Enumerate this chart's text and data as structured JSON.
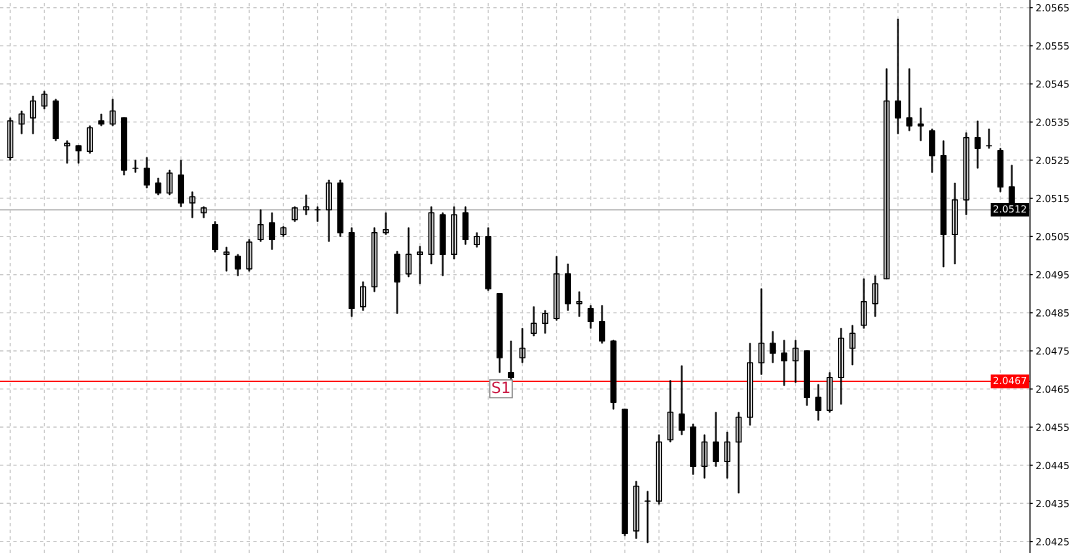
{
  "chart_data": {
    "type": "candlestick",
    "categories": [
      null,
      null,
      null,
      null,
      null,
      null,
      null,
      null,
      null,
      null,
      null,
      null,
      null,
      null,
      null,
      null,
      null,
      null,
      null,
      null,
      null,
      null,
      null,
      null,
      null,
      null,
      null,
      null,
      null,
      null,
      null,
      null,
      null,
      null,
      null,
      null,
      null,
      null,
      null,
      null,
      null,
      null,
      null,
      null,
      null,
      null,
      null,
      null,
      null,
      null,
      null,
      null,
      null,
      null,
      null,
      null,
      null,
      null,
      null,
      null,
      null,
      null,
      null,
      null,
      null,
      null,
      null,
      null,
      null,
      null,
      null,
      null,
      null,
      null,
      null,
      null,
      null,
      null,
      null,
      null,
      null,
      null,
      null,
      null,
      null,
      null,
      null,
      null,
      null
    ],
    "color": "#000000",
    "ohlc": [
      [
        2.05257,
        2.05361,
        2.0525,
        2.05353
      ],
      [
        2.05345,
        2.05379,
        2.05319,
        2.05371
      ],
      [
        2.05361,
        2.05418,
        2.05319,
        2.05405
      ],
      [
        2.05392,
        2.05431,
        2.05384,
        2.05423
      ],
      [
        2.05405,
        2.0541,
        2.05301,
        2.05307
      ],
      [
        2.05288,
        2.05301,
        2.05242,
        2.05294
      ],
      [
        2.05288,
        2.05288,
        2.05242,
        2.05275
      ],
      [
        2.05273,
        2.0534,
        2.05268,
        2.05335
      ],
      [
        2.05353,
        2.05371,
        2.0534,
        2.05345
      ],
      [
        2.05345,
        2.0541,
        2.0534,
        2.05379
      ],
      [
        2.05361,
        2.05361,
        2.05211,
        2.05224
      ],
      [
        2.05229,
        2.0525,
        2.05218,
        2.05229
      ],
      [
        2.05229,
        2.05257,
        2.05177,
        2.05185
      ],
      [
        2.0519,
        2.05203,
        2.05159,
        2.05164
      ],
      [
        2.05164,
        2.05224,
        2.05159,
        2.05216
      ],
      [
        2.05211,
        2.0525,
        2.05128,
        2.05138
      ],
      [
        2.05138,
        2.05167,
        2.05099,
        2.05154
      ],
      [
        2.05112,
        2.05128,
        2.05099,
        2.05125
      ],
      [
        2.05081,
        2.05089,
        2.05009,
        2.05016
      ],
      [
        2.05003,
        2.05022,
        2.04959,
        2.05009
      ],
      [
        2.04998,
        2.05003,
        2.04947,
        2.04965
      ],
      [
        2.04965,
        2.05042,
        2.04959,
        2.05035
      ],
      [
        2.05042,
        2.0512,
        2.05037,
        2.05081
      ],
      [
        2.05086,
        2.05112,
        2.05016,
        2.05042
      ],
      [
        2.05055,
        2.05076,
        2.0505,
        2.05073
      ],
      [
        2.05094,
        2.05128,
        2.05089,
        2.05125
      ],
      [
        2.0512,
        2.05159,
        2.05107,
        2.05128
      ],
      [
        2.0512,
        2.05128,
        2.05089,
        2.0512
      ],
      [
        2.0512,
        2.05198,
        2.05037,
        2.0519
      ],
      [
        2.0519,
        2.05198,
        2.0505,
        2.0506
      ],
      [
        2.0506,
        2.05073,
        2.0484,
        2.04861
      ],
      [
        2.04866,
        2.04931,
        2.04856,
        2.04918
      ],
      [
        2.04918,
        2.05073,
        2.04905,
        2.0506
      ],
      [
        2.0506,
        2.05112,
        2.05055,
        2.05068
      ],
      [
        2.05003,
        2.05011,
        2.04848,
        2.04931
      ],
      [
        2.04952,
        2.05073,
        2.04944,
        2.05003
      ],
      [
        2.05003,
        2.05024,
        2.04926,
        2.05009
      ],
      [
        2.05003,
        2.05128,
        2.04978,
        2.05112
      ],
      [
        2.05107,
        2.05112,
        2.04947,
        2.05003
      ],
      [
        2.05003,
        2.05128,
        2.04991,
        2.05107
      ],
      [
        2.05112,
        2.05128,
        2.05029,
        2.05042
      ],
      [
        2.05029,
        2.0506,
        2.05022,
        2.0505
      ],
      [
        2.0505,
        2.05073,
        2.04908,
        2.04913
      ],
      [
        2.049,
        2.049,
        2.04693,
        2.04732
      ],
      [
        2.04693,
        2.04776,
        2.04672,
        2.0468
      ],
      [
        2.04732,
        2.04809,
        2.04719,
        2.04757
      ],
      [
        2.04796,
        2.04866,
        2.04789,
        2.04822
      ],
      [
        2.04822,
        2.04856,
        2.04796,
        2.04848
      ],
      [
        2.04835,
        2.04998,
        2.0483,
        2.04952
      ],
      [
        2.04952,
        2.04978,
        2.04856,
        2.04874
      ],
      [
        2.04874,
        2.04905,
        2.0484,
        2.04879
      ],
      [
        2.04861,
        2.04869,
        2.04809,
        2.04827
      ],
      [
        2.04827,
        2.04869,
        2.0477,
        2.04776
      ],
      [
        2.04776,
        2.04778,
        2.04597,
        2.04615
      ],
      [
        2.04597,
        2.04597,
        2.04265,
        2.04271
      ],
      [
        2.04278,
        2.04408,
        2.04258,
        2.04395
      ],
      [
        2.04356,
        2.04382,
        2.04247,
        2.04356
      ],
      [
        2.04356,
        2.0453,
        2.04348,
        2.04511
      ],
      [
        2.04517,
        2.04672,
        2.04511,
        2.04589
      ],
      [
        2.04584,
        2.04711,
        2.0453,
        2.04542
      ],
      [
        2.0455,
        2.04558,
        2.04426,
        2.04447
      ],
      [
        2.04447,
        2.0453,
        2.04416,
        2.04511
      ],
      [
        2.04511,
        2.04589,
        2.04447,
        2.0446
      ],
      [
        2.0446,
        2.04537,
        2.04416,
        2.04511
      ],
      [
        2.04511,
        2.04589,
        2.04377,
        2.04576
      ],
      [
        2.04576,
        2.0477,
        2.04555,
        2.04719
      ],
      [
        2.04719,
        2.04913,
        2.04688,
        2.0477
      ],
      [
        2.0477,
        2.04801,
        2.04719,
        2.04744
      ],
      [
        2.04744,
        2.04778,
        2.04659,
        2.04724
      ],
      [
        2.04724,
        2.04778,
        2.04667,
        2.04757
      ],
      [
        2.0475,
        2.0475,
        2.04607,
        2.04628
      ],
      [
        2.04628,
        2.04662,
        2.04568,
        2.04594
      ],
      [
        2.04594,
        2.04693,
        2.04589,
        2.0468
      ],
      [
        2.0468,
        2.04809,
        2.0461,
        2.04783
      ],
      [
        2.04757,
        2.04817,
        2.04713,
        2.04796
      ],
      [
        2.04817,
        2.04939,
        2.04809,
        2.04879
      ],
      [
        2.04874,
        2.04947,
        2.0484,
        2.04926
      ],
      [
        2.04939,
        2.0549,
        2.04939,
        2.05405
      ],
      [
        2.05405,
        2.0562,
        2.05319,
        2.05361
      ],
      [
        2.05361,
        2.0549,
        2.05327,
        2.0534
      ],
      [
        2.05345,
        2.05387,
        2.05301,
        2.0534
      ],
      [
        2.05327,
        2.05332,
        2.05218,
        2.05262
      ],
      [
        2.05262,
        2.05301,
        2.0497,
        2.05055
      ],
      [
        2.05055,
        2.0519,
        2.04978,
        2.05146
      ],
      [
        2.05146,
        2.05322,
        2.05107,
        2.05309
      ],
      [
        2.05309,
        2.05353,
        2.05229,
        2.05281
      ],
      [
        2.05288,
        2.05332,
        2.05281,
        2.05288
      ],
      [
        2.05275,
        2.05281,
        2.05167,
        2.0518
      ],
      [
        2.0518,
        2.05237,
        2.05107,
        2.0512
      ]
    ],
    "ylim": [
      2.0422,
      2.0567
    ],
    "yticks": [
      2.0425,
      2.0435,
      2.0445,
      2.0455,
      2.0465,
      2.0475,
      2.0485,
      2.0495,
      2.0505,
      2.0515,
      2.0525,
      2.0535,
      2.0545,
      2.0555,
      2.0565
    ],
    "tick_labels": "y",
    "grid": true,
    "ref_lines": [
      {
        "axis": "y",
        "value": 2.0467,
        "label": "2.0467",
        "color": "#ff0000"
      },
      {
        "axis": "y",
        "value": 2.0512,
        "label": "2.0512",
        "color": "#c0c0c0"
      }
    ],
    "annotations": [
      {
        "text": "S1",
        "y": 2.0467
      }
    ]
  }
}
